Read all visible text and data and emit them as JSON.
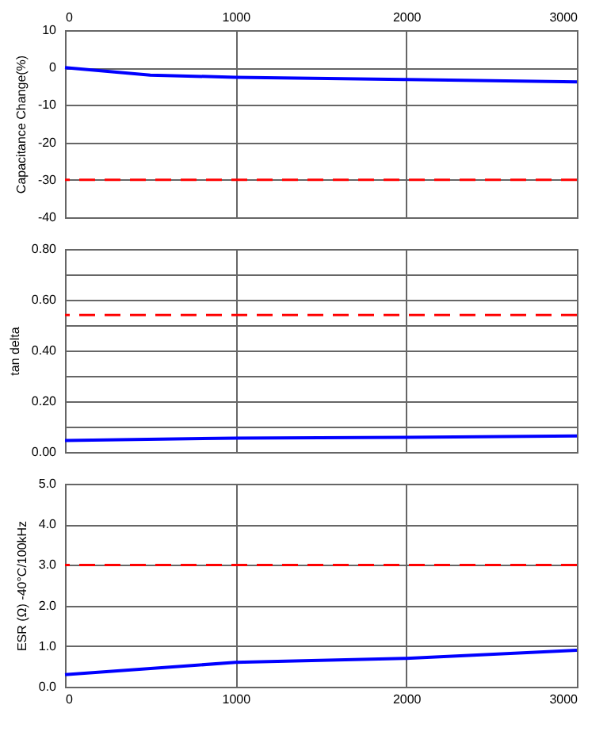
{
  "chart_data": [
    {
      "type": "line",
      "ylabel": "Capacitance Change(%)",
      "xlim": [
        0,
        3000
      ],
      "xticks": [
        0,
        1000,
        2000,
        3000
      ],
      "ylim": [
        -40,
        10
      ],
      "yticks": [
        -40,
        -30,
        -20,
        -10,
        0,
        10
      ],
      "grid": true,
      "marker": "none",
      "series": [
        {
          "color": "#0000ff",
          "x": [
            0,
            500,
            1000,
            2000,
            3000
          ],
          "values": [
            0,
            -2,
            -2.6,
            -3.2,
            -3.8
          ]
        }
      ],
      "ref_lines": [
        {
          "axis": "y",
          "value": -30,
          "color": "#ff0000",
          "line_style": "dashed"
        }
      ]
    },
    {
      "type": "line",
      "ylabel": "tan delta",
      "xlim": [
        0,
        3000
      ],
      "xticks": [
        0,
        1000,
        2000,
        3000
      ],
      "tick_labels": "y",
      "ylim": [
        0,
        0.8
      ],
      "yticks": [
        {
          "value": 0,
          "label": "0.00"
        },
        {
          "value": 0.1,
          "label": null
        },
        {
          "value": 0.2,
          "label": "0.20"
        },
        {
          "value": 0.3,
          "label": null
        },
        {
          "value": 0.4,
          "label": "0.40"
        },
        {
          "value": 0.5,
          "label": null
        },
        {
          "value": 0.6,
          "label": "0.60"
        },
        {
          "value": 0.7,
          "label": null
        },
        {
          "value": 0.8,
          "label": "0.80"
        }
      ],
      "grid": true,
      "marker": "none",
      "series": [
        {
          "color": "#0000ff",
          "x": [
            0,
            1000,
            2000,
            3000
          ],
          "values": [
            0.045,
            0.055,
            0.058,
            0.063
          ]
        }
      ],
      "ref_lines": [
        {
          "axis": "y",
          "value": 0.54,
          "color": "#ff0000",
          "line_style": "dashed"
        }
      ]
    },
    {
      "type": "line",
      "ylabel": "ESR (Ω)   -40°C/100kHz",
      "xlim": [
        0,
        3000
      ],
      "xticks": [
        0,
        1000,
        2000,
        3000
      ],
      "ylim": [
        0,
        5
      ],
      "yticks": [
        {
          "value": 0,
          "label": "0.0"
        },
        {
          "value": 1,
          "label": "1.0"
        },
        {
          "value": 2,
          "label": "2.0"
        },
        {
          "value": 3,
          "label": "3.0"
        },
        {
          "value": 4,
          "label": "4.0"
        },
        {
          "value": 5,
          "label": "5.0"
        }
      ],
      "grid": true,
      "marker": "none",
      "series": [
        {
          "color": "#0000ff",
          "x": [
            0,
            1000,
            2000,
            3000
          ],
          "values": [
            0.3,
            0.6,
            0.7,
            0.9
          ]
        }
      ],
      "ref_lines": [
        {
          "axis": "y",
          "value": 3,
          "color": "#ff0000",
          "line_style": "dashed"
        }
      ]
    }
  ]
}
